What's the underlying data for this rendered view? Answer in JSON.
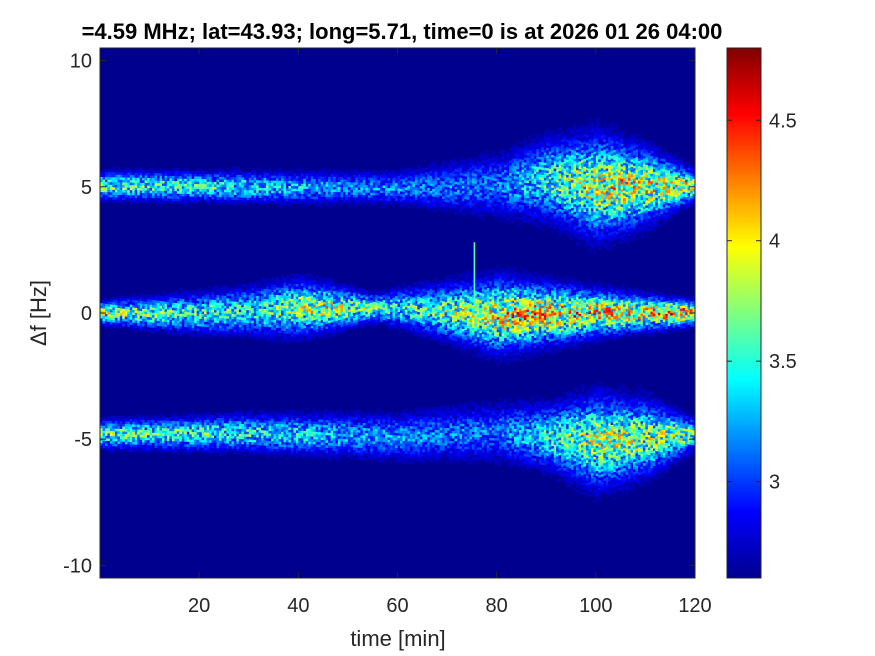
{
  "chart_data": {
    "type": "heatmap",
    "title": "=4.59 MHz;  lat=43.93; long=5.71, time=0 is at 2026 01 26 04:00",
    "xlabel": "time [min]",
    "ylabel": "Δf [Hz]",
    "xlim": [
      0,
      120
    ],
    "ylim": [
      -10.5,
      10.5
    ],
    "x_ticks": [
      20,
      40,
      60,
      80,
      100,
      120
    ],
    "x_tick_labels": [
      "20",
      "40",
      "60",
      "80",
      "100",
      "120"
    ],
    "y_ticks": [
      10,
      5,
      0,
      -5,
      -10
    ],
    "y_tick_labels": [
      "10",
      "5",
      "0",
      "-5",
      "-10"
    ],
    "colorbar": {
      "colormap": "jet",
      "clim": [
        2.6,
        4.8
      ],
      "ticks": [
        4.5,
        4,
        3.5,
        3
      ],
      "tick_labels": [
        "4.5",
        "4",
        "3.5",
        "3"
      ],
      "location": "right"
    },
    "background_value": 2.62,
    "series": [
      {
        "center_hz": [
          [
            0,
            5.05
          ],
          [
            30,
            5.0
          ],
          [
            60,
            4.95
          ],
          [
            80,
            5.05
          ],
          [
            90,
            5.3
          ],
          [
            100,
            5.0
          ],
          [
            120,
            5.05
          ]
        ],
        "amplitude": [
          [
            0,
            3.8
          ],
          [
            20,
            3.7
          ],
          [
            50,
            3.3
          ],
          [
            80,
            3.2
          ],
          [
            95,
            3.9
          ],
          [
            105,
            4.2
          ],
          [
            120,
            4.0
          ]
        ],
        "width_hz": [
          [
            0,
            0.3
          ],
          [
            60,
            0.35
          ],
          [
            92,
            0.9
          ],
          [
            100,
            1.1
          ],
          [
            110,
            0.8
          ],
          [
            120,
            0.3
          ]
        ]
      },
      {
        "center_hz": [
          [
            0,
            0.0
          ],
          [
            20,
            0.0
          ],
          [
            40,
            0.2
          ],
          [
            60,
            0.2
          ],
          [
            80,
            -0.1
          ],
          [
            100,
            0.0
          ],
          [
            120,
            0.0
          ]
        ],
        "amplitude": [
          [
            0,
            3.9
          ],
          [
            30,
            3.6
          ],
          [
            45,
            4.1
          ],
          [
            60,
            3.6
          ],
          [
            85,
            4.3
          ],
          [
            110,
            4.2
          ],
          [
            120,
            4.6
          ]
        ],
        "width_hz": [
          [
            0,
            0.25
          ],
          [
            40,
            0.6
          ],
          [
            55,
            0.3
          ],
          [
            80,
            0.8
          ],
          [
            100,
            0.5
          ],
          [
            120,
            0.25
          ]
        ]
      },
      {
        "center_hz": [
          [
            0,
            -4.8
          ],
          [
            30,
            -4.75
          ],
          [
            60,
            -4.9
          ],
          [
            80,
            -4.7
          ],
          [
            95,
            -5.0
          ],
          [
            100,
            -5.1
          ],
          [
            120,
            -4.8
          ]
        ],
        "amplitude": [
          [
            0,
            3.8
          ],
          [
            30,
            3.6
          ],
          [
            60,
            3.3
          ],
          [
            80,
            3.2
          ],
          [
            100,
            4.0
          ],
          [
            120,
            3.9
          ]
        ],
        "width_hz": [
          [
            0,
            0.3
          ],
          [
            60,
            0.5
          ],
          [
            90,
            0.7
          ],
          [
            100,
            1.0
          ],
          [
            110,
            0.8
          ],
          [
            120,
            0.3
          ]
        ]
      }
    ],
    "spike": {
      "time_min": 75.5,
      "df_range_hz": [
        0.3,
        2.8
      ],
      "value": 3.6
    }
  }
}
